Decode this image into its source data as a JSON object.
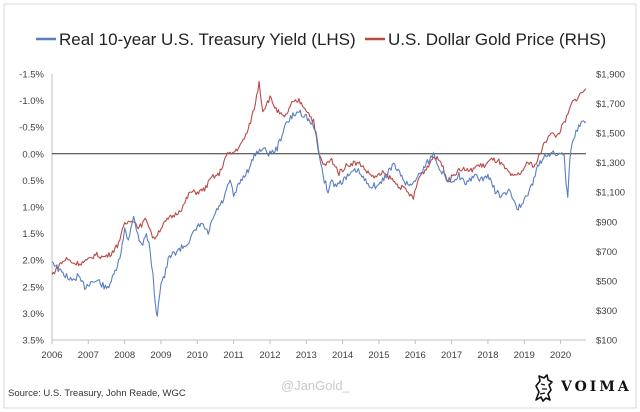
{
  "chart_data": {
    "type": "line",
    "title": "",
    "grid": false,
    "legend_position": "top",
    "x_ticks": [
      "2006",
      "2007",
      "2008",
      "2009",
      "2010",
      "2011",
      "2012",
      "2013",
      "2014",
      "2015",
      "2016",
      "2017",
      "2018",
      "2019",
      "2020"
    ],
    "xlim": [
      2006,
      2020.7
    ],
    "left_axis": {
      "ticks": [
        "-1.5%",
        "-1.0%",
        "-0.5%",
        "0.0%",
        "0.5%",
        "1.0%",
        "1.5%",
        "2.0%",
        "2.5%",
        "3.0%",
        "3.5%"
      ],
      "ylim": [
        -1.5,
        3.5
      ],
      "inverted": true
    },
    "right_axis": {
      "ticks": [
        "$1,900",
        "$1,700",
        "$1,500",
        "$1,300",
        "$1,100",
        "$900",
        "$700",
        "$500",
        "$300",
        "$100"
      ],
      "ylim": [
        100,
        1900
      ]
    },
    "series": [
      {
        "name": "Real 10-year U.S. Treasury Yield (LHS)",
        "color": "#5a7fc0",
        "axis": "left",
        "x": [
          2006.0,
          2006.2,
          2006.4,
          2006.55,
          2006.7,
          2006.9,
          2007.1,
          2007.3,
          2007.5,
          2007.7,
          2007.9,
          2008.0,
          2008.1,
          2008.25,
          2008.4,
          2008.5,
          2008.6,
          2008.7,
          2008.78,
          2008.85,
          2008.9,
          2009.0,
          2009.1,
          2009.2,
          2009.3,
          2009.5,
          2009.7,
          2009.9,
          2010.0,
          2010.1,
          2010.3,
          2010.5,
          2010.7,
          2010.8,
          2010.9,
          2011.0,
          2011.2,
          2011.4,
          2011.6,
          2011.75,
          2011.9,
          2012.0,
          2012.2,
          2012.4,
          2012.6,
          2012.8,
          2013.0,
          2013.2,
          2013.3,
          2013.4,
          2013.5,
          2013.6,
          2013.7,
          2013.8,
          2014.0,
          2014.2,
          2014.4,
          2014.6,
          2014.8,
          2015.0,
          2015.2,
          2015.4,
          2015.6,
          2015.8,
          2016.0,
          2016.2,
          2016.4,
          2016.5,
          2016.7,
          2016.9,
          2017.0,
          2017.2,
          2017.4,
          2017.6,
          2017.8,
          2018.0,
          2018.2,
          2018.4,
          2018.6,
          2018.8,
          2018.9,
          2019.0,
          2019.2,
          2019.4,
          2019.6,
          2019.8,
          2020.0,
          2020.1,
          2020.15,
          2020.2,
          2020.25,
          2020.35,
          2020.5,
          2020.6,
          2020.7
        ],
        "values": [
          2.0,
          2.2,
          2.3,
          2.4,
          2.3,
          2.5,
          2.4,
          2.4,
          2.55,
          2.3,
          1.9,
          1.4,
          1.6,
          1.2,
          1.6,
          1.7,
          1.5,
          1.8,
          2.3,
          2.9,
          3.0,
          2.4,
          2.3,
          2.0,
          1.9,
          1.8,
          1.7,
          1.5,
          1.4,
          1.3,
          1.5,
          1.1,
          0.9,
          0.7,
          0.5,
          0.8,
          0.5,
          0.3,
          0.0,
          -0.1,
          -0.05,
          0.0,
          -0.1,
          -0.5,
          -0.7,
          -0.8,
          -0.7,
          -0.5,
          -0.3,
          0.2,
          0.5,
          0.7,
          0.5,
          0.6,
          0.5,
          0.4,
          0.3,
          0.5,
          0.6,
          0.6,
          0.4,
          0.2,
          0.4,
          0.6,
          0.5,
          0.3,
          0.1,
          0.0,
          0.3,
          0.5,
          0.5,
          0.4,
          0.6,
          0.4,
          0.5,
          0.4,
          0.7,
          0.8,
          0.7,
          1.0,
          1.0,
          0.9,
          0.6,
          0.2,
          0.0,
          0.0,
          0.0,
          0.0,
          0.5,
          0.8,
          0.1,
          -0.3,
          -0.5,
          -0.6,
          -0.6
        ]
      },
      {
        "name": "U.S. Dollar Gold Price (RHS)",
        "color": "#b84a46",
        "axis": "right",
        "x": [
          2006.0,
          2006.2,
          2006.4,
          2006.6,
          2006.8,
          2007.0,
          2007.2,
          2007.4,
          2007.6,
          2007.8,
          2008.0,
          2008.2,
          2008.4,
          2008.6,
          2008.8,
          2009.0,
          2009.2,
          2009.4,
          2009.6,
          2009.8,
          2010.0,
          2010.2,
          2010.4,
          2010.6,
          2010.8,
          2011.0,
          2011.2,
          2011.4,
          2011.6,
          2011.7,
          2011.8,
          2012.0,
          2012.2,
          2012.4,
          2012.6,
          2012.8,
          2013.0,
          2013.2,
          2013.35,
          2013.5,
          2013.7,
          2013.9,
          2014.1,
          2014.3,
          2014.5,
          2014.7,
          2014.9,
          2015.1,
          2015.3,
          2015.5,
          2015.7,
          2015.95,
          2016.1,
          2016.3,
          2016.5,
          2016.7,
          2016.9,
          2017.1,
          2017.3,
          2017.5,
          2017.7,
          2017.9,
          2018.1,
          2018.3,
          2018.5,
          2018.7,
          2018.9,
          2019.1,
          2019.3,
          2019.5,
          2019.7,
          2019.9,
          2020.1,
          2020.2,
          2020.3,
          2020.5,
          2020.6,
          2020.7
        ],
        "values": [
          540,
          610,
          650,
          620,
          620,
          640,
          680,
          660,
          680,
          740,
          880,
          920,
          860,
          920,
          780,
          860,
          920,
          950,
          1000,
          1100,
          1100,
          1120,
          1200,
          1220,
          1350,
          1370,
          1420,
          1520,
          1700,
          1850,
          1650,
          1740,
          1650,
          1600,
          1700,
          1720,
          1660,
          1580,
          1350,
          1280,
          1320,
          1230,
          1280,
          1300,
          1290,
          1230,
          1200,
          1230,
          1200,
          1150,
          1120,
          1060,
          1200,
          1260,
          1340,
          1310,
          1170,
          1230,
          1260,
          1240,
          1280,
          1280,
          1320,
          1310,
          1250,
          1200,
          1230,
          1300,
          1280,
          1400,
          1500,
          1480,
          1570,
          1620,
          1700,
          1750,
          1780,
          1800
        ]
      }
    ]
  },
  "source_text": "Source: U.S. Treasury, John Reade, WGC",
  "watermark_text": "@JanGold_",
  "brand": {
    "name": "VOIMA",
    "logo_icon": "lion-rampant-icon"
  }
}
